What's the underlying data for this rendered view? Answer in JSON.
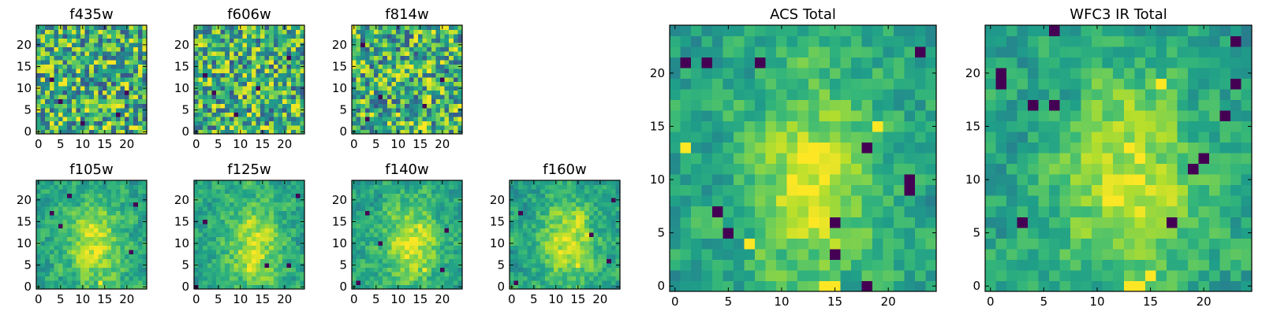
{
  "chart_data": [
    {
      "type": "heatmap",
      "title": "f435w",
      "xlim": [
        0,
        25
      ],
      "ylim": [
        0,
        25
      ],
      "xticks": [
        0,
        5,
        10,
        15,
        20
      ],
      "yticks": [
        0,
        5,
        10,
        15,
        20
      ],
      "colormap": "viridis",
      "bright_spots": [
        [
          15,
          1
        ],
        [
          12,
          1
        ],
        [
          16,
          2
        ]
      ],
      "dark_spots": [
        [
          5,
          7
        ],
        [
          10,
          2
        ],
        [
          18,
          4
        ],
        [
          3,
          12
        ],
        [
          20,
          9
        ]
      ]
    },
    {
      "type": "heatmap",
      "title": "f606w",
      "xlim": [
        0,
        25
      ],
      "ylim": [
        0,
        25
      ],
      "xticks": [
        0,
        5,
        10,
        15,
        20
      ],
      "yticks": [
        0,
        5,
        10,
        15,
        20
      ],
      "colormap": "viridis",
      "bright_spots": [
        [
          15,
          1
        ],
        [
          16,
          1
        ],
        [
          8,
          1
        ]
      ],
      "dark_spots": [
        [
          4,
          9
        ],
        [
          14,
          10
        ],
        [
          21,
          17
        ],
        [
          2,
          13
        ],
        [
          9,
          4
        ]
      ]
    },
    {
      "type": "heatmap",
      "title": "f814w",
      "xlim": [
        0,
        25
      ],
      "ylim": [
        0,
        25
      ],
      "xticks": [
        0,
        5,
        10,
        15,
        20
      ],
      "yticks": [
        0,
        5,
        10,
        15,
        20
      ],
      "colormap": "viridis",
      "bright_spots": [
        [
          15,
          1
        ],
        [
          16,
          1
        ],
        [
          13,
          2
        ]
      ],
      "dark_spots": [
        [
          2,
          20
        ],
        [
          16,
          6
        ],
        [
          20,
          12
        ],
        [
          6,
          8
        ],
        [
          3,
          3
        ]
      ]
    },
    {
      "type": "heatmap",
      "title": "f105w",
      "xlim": [
        0,
        25
      ],
      "ylim": [
        0,
        25
      ],
      "xticks": [
        0,
        5,
        10,
        15,
        20
      ],
      "yticks": [
        0,
        5,
        10,
        15,
        20
      ],
      "colormap": "viridis",
      "bright_spots": [
        [
          14,
          1
        ],
        [
          13,
          8
        ],
        [
          12,
          14
        ]
      ],
      "dark_spots": [
        [
          3,
          17
        ],
        [
          5,
          14
        ],
        [
          22,
          19
        ],
        [
          21,
          8
        ],
        [
          7,
          21
        ]
      ]
    },
    {
      "type": "heatmap",
      "title": "f125w",
      "xlim": [
        0,
        25
      ],
      "ylim": [
        0,
        25
      ],
      "xticks": [
        0,
        5,
        10,
        15,
        20
      ],
      "yticks": [
        0,
        5,
        10,
        15,
        20
      ],
      "colormap": "viridis",
      "bright_spots": [
        [
          13,
          8
        ],
        [
          14,
          12
        ],
        [
          12,
          4
        ]
      ],
      "dark_spots": [
        [
          2,
          15
        ],
        [
          23,
          21
        ],
        [
          21,
          5
        ],
        [
          16,
          5
        ],
        [
          0,
          0
        ]
      ]
    },
    {
      "type": "heatmap",
      "title": "f140w",
      "xlim": [
        0,
        25
      ],
      "ylim": [
        0,
        25
      ],
      "xticks": [
        0,
        5,
        10,
        15,
        20
      ],
      "yticks": [
        0,
        5,
        10,
        15,
        20
      ],
      "colormap": "viridis",
      "bright_spots": [
        [
          15,
          14
        ],
        [
          12,
          7
        ],
        [
          16,
          4
        ]
      ],
      "dark_spots": [
        [
          3,
          17
        ],
        [
          21,
          13
        ],
        [
          20,
          4
        ],
        [
          6,
          10
        ],
        [
          1,
          1
        ]
      ]
    },
    {
      "type": "heatmap",
      "title": "f160w",
      "xlim": [
        0,
        25
      ],
      "ylim": [
        0,
        25
      ],
      "xticks": [
        0,
        5,
        10,
        15,
        20
      ],
      "yticks": [
        0,
        5,
        10,
        15,
        20
      ],
      "colormap": "viridis",
      "bright_spots": [
        [
          12,
          11
        ],
        [
          11,
          8
        ],
        [
          15,
          5
        ]
      ],
      "dark_spots": [
        [
          1,
          1
        ],
        [
          23,
          20
        ],
        [
          2,
          17
        ],
        [
          22,
          6
        ],
        [
          18,
          12
        ]
      ]
    },
    {
      "type": "heatmap",
      "title": "ACS Total",
      "xlim": [
        0,
        25
      ],
      "ylim": [
        0,
        25
      ],
      "xticks": [
        0,
        5,
        10,
        15,
        20
      ],
      "yticks": [
        0,
        5,
        10,
        15,
        20
      ],
      "colormap": "viridis",
      "bright_spots": [
        [
          14,
          0
        ],
        [
          15,
          0
        ],
        [
          7,
          4
        ],
        [
          11,
          10
        ],
        [
          1,
          13
        ],
        [
          19,
          15
        ]
      ],
      "dark_spots": [
        [
          1,
          21
        ],
        [
          3,
          21
        ],
        [
          8,
          21
        ],
        [
          23,
          22
        ],
        [
          22,
          9
        ],
        [
          22,
          10
        ],
        [
          4,
          7
        ],
        [
          15,
          3
        ],
        [
          18,
          0
        ],
        [
          5,
          5
        ],
        [
          15,
          6
        ],
        [
          18,
          13
        ]
      ]
    },
    {
      "type": "heatmap",
      "title": "WFC3 IR Total",
      "xlim": [
        0,
        25
      ],
      "ylim": [
        0,
        25
      ],
      "xticks": [
        0,
        5,
        10,
        15,
        20
      ],
      "yticks": [
        0,
        5,
        10,
        15,
        20
      ],
      "colormap": "viridis",
      "bright_spots": [
        [
          13,
          13
        ],
        [
          14,
          12
        ],
        [
          13,
          0
        ],
        [
          14,
          0
        ],
        [
          15,
          1
        ],
        [
          16,
          19
        ]
      ],
      "dark_spots": [
        [
          1,
          19
        ],
        [
          1,
          20
        ],
        [
          4,
          17
        ],
        [
          6,
          17
        ],
        [
          19,
          11
        ],
        [
          20,
          12
        ],
        [
          17,
          6
        ],
        [
          3,
          6
        ],
        [
          22,
          16
        ],
        [
          23,
          19
        ],
        [
          6,
          24
        ],
        [
          23,
          23
        ]
      ]
    }
  ]
}
